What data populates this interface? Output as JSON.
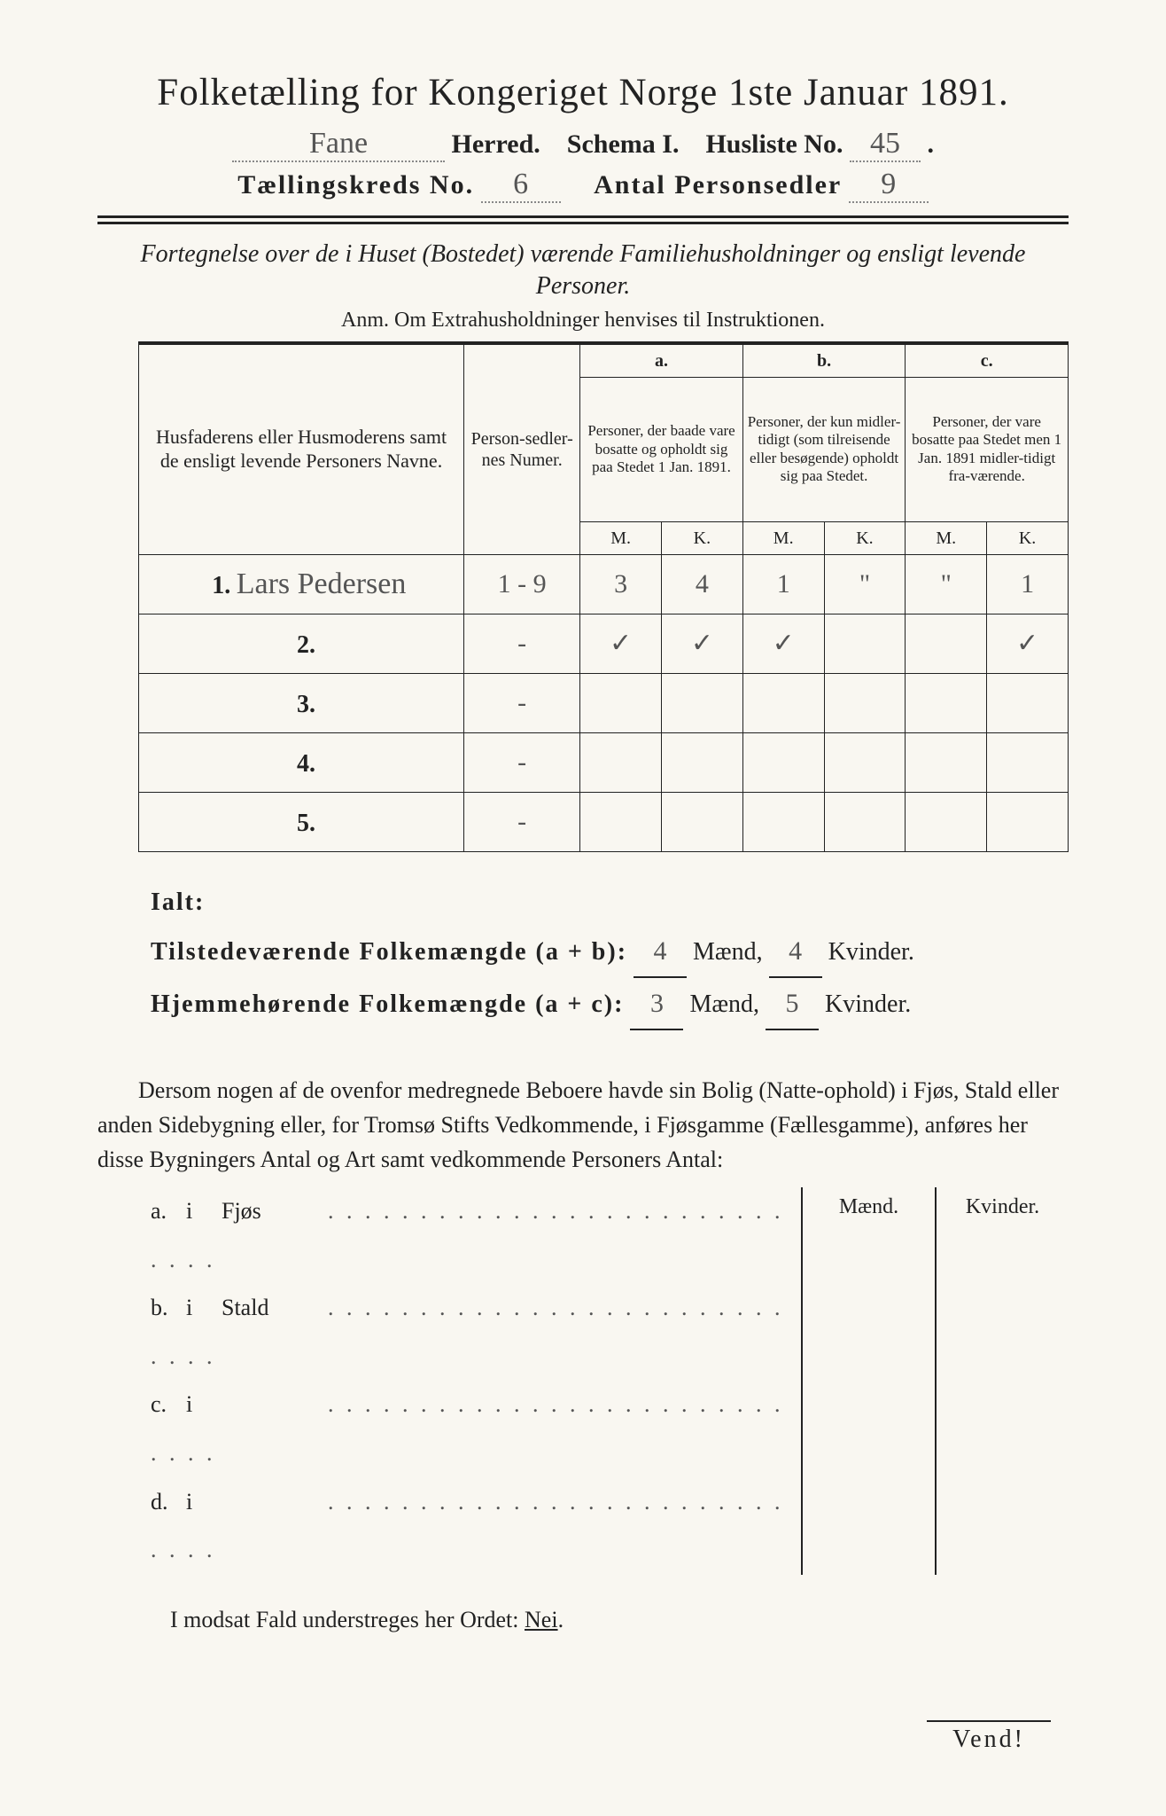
{
  "title": "Folketælling for Kongeriget Norge 1ste Januar 1891.",
  "header": {
    "herred_value": "Fane",
    "herred_label": "Herred.",
    "schema_label": "Schema I.",
    "husliste_label": "Husliste No.",
    "husliste_value": "45",
    "kreds_label": "Tællingskreds No.",
    "kreds_value": "6",
    "antal_label": "Antal Personsedler",
    "antal_value": "9"
  },
  "intro": {
    "desc": "Fortegnelse over de i Huset (Bostedet) værende Familiehusholdninger og ensligt levende Personer.",
    "anm": "Anm.   Om Extrahusholdninger henvises til Instruktionen."
  },
  "table": {
    "col_names": "Husfaderens eller Husmoderens samt de ensligt levende Personers Navne.",
    "col_numer": "Person-sedler-nes Numer.",
    "col_a_label": "a.",
    "col_a": "Personer, der baade vare bosatte og opholdt sig paa Stedet 1 Jan. 1891.",
    "col_b_label": "b.",
    "col_b": "Personer, der kun midler-tidigt (som tilreisende eller besøgende) opholdt sig paa Stedet.",
    "col_c_label": "c.",
    "col_c": "Personer, der vare bosatte paa Stedet men 1 Jan. 1891 midler-tidigt fra-værende.",
    "mk_m": "M.",
    "mk_k": "K.",
    "rows": [
      {
        "n": "1.",
        "name": "Lars Pedersen",
        "numer": "1 - 9",
        "am": "3",
        "ak": "4",
        "bm": "1",
        "bk": "\"",
        "cm": "\"",
        "ck": "1"
      },
      {
        "n": "2.",
        "name": "",
        "numer": "-",
        "am": "✓",
        "ak": "✓",
        "bm": "✓",
        "bk": "",
        "cm": "",
        "ck": "✓"
      },
      {
        "n": "3.",
        "name": "",
        "numer": "-",
        "am": "",
        "ak": "",
        "bm": "",
        "bk": "",
        "cm": "",
        "ck": ""
      },
      {
        "n": "4.",
        "name": "",
        "numer": "-",
        "am": "",
        "ak": "",
        "bm": "",
        "bk": "",
        "cm": "",
        "ck": ""
      },
      {
        "n": "5.",
        "name": "",
        "numer": "-",
        "am": "",
        "ak": "",
        "bm": "",
        "bk": "",
        "cm": "",
        "ck": ""
      }
    ]
  },
  "totals": {
    "ialt": "Ialt:",
    "tilstede_label": "Tilstedeværende Folkemængde (a + b):",
    "tilstede_m": "4",
    "tilstede_k": "4",
    "hjemme_label": "Hjemmehørende Folkemængde (a + c):",
    "hjemme_m": "3",
    "hjemme_k": "5",
    "maend": "Mænd,",
    "kvinder": "Kvinder."
  },
  "para": "Dersom nogen af de ovenfor medregnede Beboere havde sin Bolig (Natte-ophold) i Fjøs, Stald eller anden Sidebygning eller, for Tromsø Stifts Vedkommende, i Fjøsgamme (Fællesgamme), anføres her disse Bygningers Antal og Art samt vedkommende Personers Antal:",
  "lof": {
    "maend": "Mænd.",
    "kvinder": "Kvinder.",
    "rows": [
      {
        "k": "a.",
        "l": "i",
        "t": "Fjøs"
      },
      {
        "k": "b.",
        "l": "i",
        "t": "Stald"
      },
      {
        "k": "c.",
        "l": "i",
        "t": ""
      },
      {
        "k": "d.",
        "l": "i",
        "t": ""
      }
    ]
  },
  "footer": {
    "text_a": "I modsat Fald understreges her Ordet:",
    "nei": "Nei",
    "vend": "Vend!"
  }
}
